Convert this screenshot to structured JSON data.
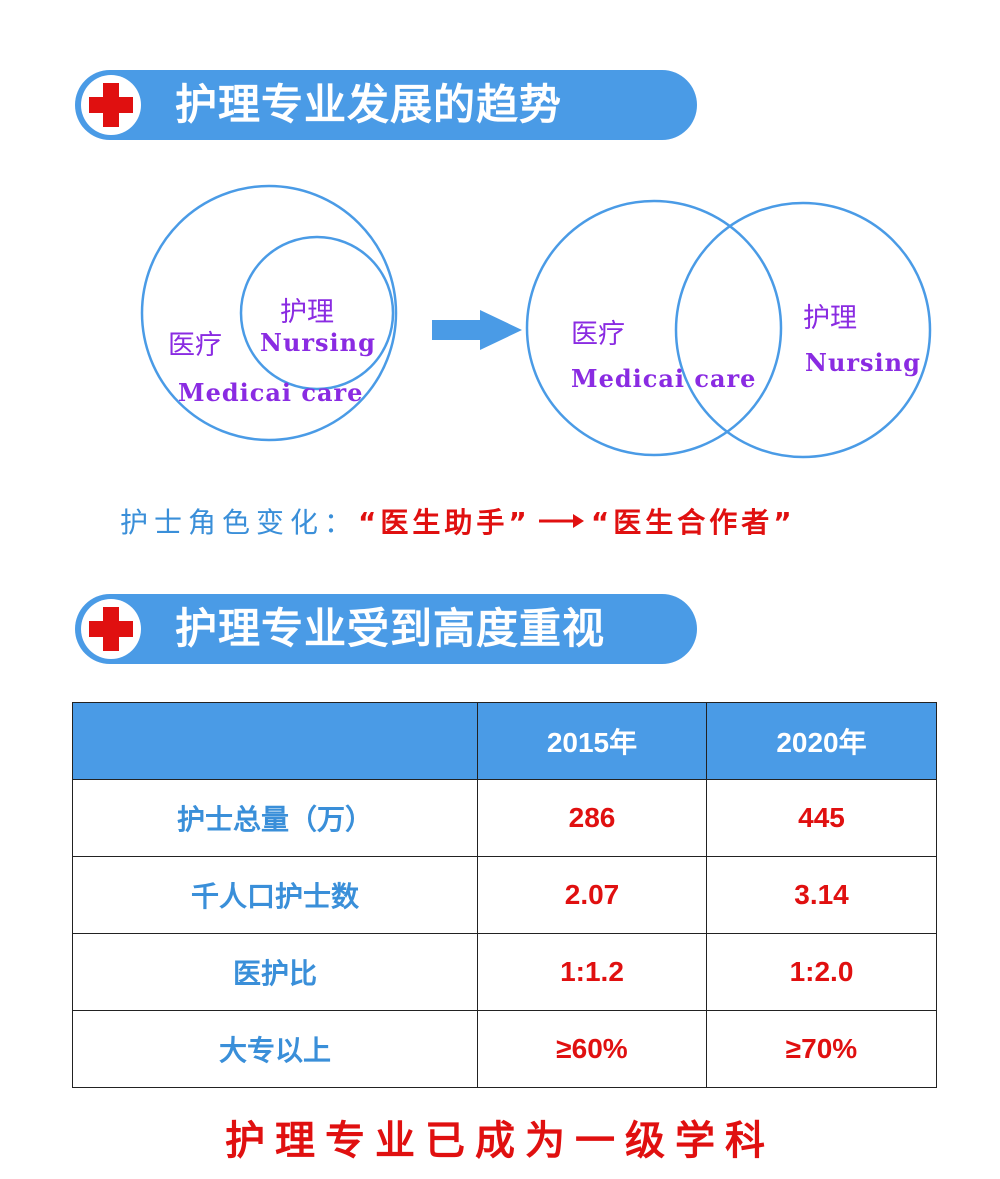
{
  "section1": {
    "title": "护理专业发展的趋势"
  },
  "diagram_before": {
    "outer_cn": "医疗",
    "outer_en": "Medicai care",
    "inner_cn": "护理",
    "inner_en": "Nursing"
  },
  "diagram_after": {
    "left_cn": "医疗",
    "left_en": "Medicai care",
    "right_cn": "护理",
    "right_en": "Nursing"
  },
  "role_change": {
    "prefix": "护士角色变化：",
    "from": "“医生助手”",
    "to": "“医生合作者”"
  },
  "section2": {
    "title": "护理专业受到高度重视"
  },
  "table": {
    "header": [
      "",
      "2015年",
      "2020年"
    ],
    "rows": [
      [
        "护士总量（万）",
        "286",
        "445"
      ],
      [
        "千人口护士数",
        "2.07",
        "3.14"
      ],
      [
        "医护比",
        "1:1.2",
        "1:2.0"
      ],
      [
        "大专以上",
        "≥60%",
        "≥70%"
      ]
    ]
  },
  "footer": {
    "text": "护理专业已成为一级学科"
  },
  "colors": {
    "banner": "#4a9be6",
    "accent_red": "#e01010",
    "label_purple": "#8a2be2",
    "circle_blue": "#4a9be6"
  },
  "icons": [
    "red-cross-icon",
    "right-arrow-icon"
  ]
}
